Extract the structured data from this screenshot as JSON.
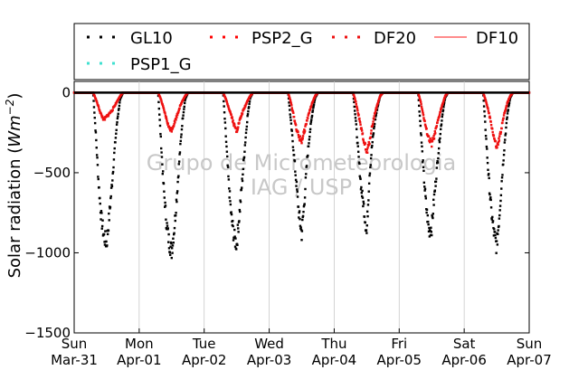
{
  "chart_data": {
    "type": "scatter",
    "ylabel": "Solar radiation (W m^-2)",
    "ylabel_parts": {
      "prefix": "Solar radiation (",
      "unit": "Wm",
      "exp": "−2",
      "suffix": ")"
    },
    "ylim": [
      -1500,
      70
    ],
    "y_ticks": [
      0,
      -500,
      -1000,
      -1500
    ],
    "y_tick_labels": [
      "0",
      "−500",
      "−1000",
      "−1500"
    ],
    "xlim": [
      "2013-03-31",
      "2013-04-07"
    ],
    "x_ticks": [
      {
        "date": "2013-03-31",
        "line1": "Sun",
        "line2": "Mar-31"
      },
      {
        "date": "2013-04-01",
        "line1": "Mon",
        "line2": "Apr-01"
      },
      {
        "date": "2013-04-02",
        "line1": "Tue",
        "line2": "Apr-02"
      },
      {
        "date": "2013-04-03",
        "line1": "Wed",
        "line2": "Apr-03"
      },
      {
        "date": "2013-04-04",
        "line1": "Thu",
        "line2": "Apr-04"
      },
      {
        "date": "2013-04-05",
        "line1": "Fri",
        "line2": "Apr-05"
      },
      {
        "date": "2013-04-06",
        "line1": "Sat",
        "line2": "Apr-06"
      },
      {
        "date": "2013-04-07",
        "line1": "Sun",
        "line2": "Apr-07"
      }
    ],
    "grid": "vertical",
    "legend_placement": "top",
    "watermark": [
      "Grupo de Micrometeorologia",
      "IAG / USP"
    ],
    "series": [
      {
        "name": "GL10",
        "style": "dots",
        "color": "#000000",
        "points": [
          [
            "2013-03-31 07:00",
            0
          ],
          [
            "2013-03-31 08:00",
            -260
          ],
          [
            "2013-03-31 09:00",
            -560
          ],
          [
            "2013-03-31 10:00",
            -780
          ],
          [
            "2013-03-31 11:00",
            -900
          ],
          [
            "2013-03-31 12:00",
            -940
          ],
          [
            "2013-03-31 13:00",
            -760
          ],
          [
            "2013-03-31 14:00",
            -560
          ],
          [
            "2013-03-31 15:00",
            -340
          ],
          [
            "2013-03-31 16:00",
            -160
          ],
          [
            "2013-03-31 17:00",
            -40
          ],
          [
            "2013-03-31 18:00",
            0
          ],
          [
            "2013-04-01 07:00",
            0
          ],
          [
            "2013-04-01 08:00",
            -290
          ],
          [
            "2013-04-01 09:00",
            -580
          ],
          [
            "2013-04-01 10:00",
            -800
          ],
          [
            "2013-04-01 11:00",
            -930
          ],
          [
            "2013-04-01 12:00",
            -990
          ],
          [
            "2013-04-01 13:00",
            -840
          ],
          [
            "2013-04-01 14:00",
            -620
          ],
          [
            "2013-04-01 15:00",
            -380
          ],
          [
            "2013-04-01 16:00",
            -170
          ],
          [
            "2013-04-01 17:00",
            -40
          ],
          [
            "2013-04-01 18:00",
            0
          ],
          [
            "2013-04-02 07:00",
            0
          ],
          [
            "2013-04-02 08:00",
            -270
          ],
          [
            "2013-04-02 09:00",
            -550
          ],
          [
            "2013-04-02 10:00",
            -770
          ],
          [
            "2013-04-02 11:00",
            -900
          ],
          [
            "2013-04-02 12:00",
            -950
          ],
          [
            "2013-04-02 13:00",
            -760
          ],
          [
            "2013-04-02 14:00",
            -560
          ],
          [
            "2013-04-02 15:00",
            -340
          ],
          [
            "2013-04-02 16:00",
            -150
          ],
          [
            "2013-04-02 17:00",
            -30
          ],
          [
            "2013-04-02 18:00",
            0
          ],
          [
            "2013-04-03 07:00",
            0
          ],
          [
            "2013-04-03 08:00",
            -180
          ],
          [
            "2013-04-03 09:00",
            -360
          ],
          [
            "2013-04-03 10:00",
            -560
          ],
          [
            "2013-04-03 11:00",
            -760
          ],
          [
            "2013-04-03 12:00",
            -880
          ],
          [
            "2013-04-03 13:00",
            -680
          ],
          [
            "2013-04-03 14:00",
            -420
          ],
          [
            "2013-04-03 15:00",
            -250
          ],
          [
            "2013-04-03 16:00",
            -120
          ],
          [
            "2013-04-03 17:00",
            -30
          ],
          [
            "2013-04-03 18:00",
            0
          ],
          [
            "2013-04-04 07:00",
            0
          ],
          [
            "2013-04-04 08:00",
            -180
          ],
          [
            "2013-04-04 09:00",
            -400
          ],
          [
            "2013-04-04 10:00",
            -600
          ],
          [
            "2013-04-04 11:00",
            -720
          ],
          [
            "2013-04-04 12:00",
            -880
          ],
          [
            "2013-04-04 13:00",
            -520
          ],
          [
            "2013-04-04 14:00",
            -330
          ],
          [
            "2013-04-04 15:00",
            -180
          ],
          [
            "2013-04-04 16:00",
            -90
          ],
          [
            "2013-04-04 17:00",
            -20
          ],
          [
            "2013-04-04 18:00",
            0
          ],
          [
            "2013-04-05 07:00",
            0
          ],
          [
            "2013-04-05 08:00",
            -240
          ],
          [
            "2013-04-05 09:00",
            -500
          ],
          [
            "2013-04-05 10:00",
            -720
          ],
          [
            "2013-04-05 11:00",
            -860
          ],
          [
            "2013-04-05 12:00",
            -840
          ],
          [
            "2013-04-05 13:00",
            -640
          ],
          [
            "2013-04-05 14:00",
            -460
          ],
          [
            "2013-04-05 15:00",
            -280
          ],
          [
            "2013-04-05 16:00",
            -130
          ],
          [
            "2013-04-05 17:00",
            -30
          ],
          [
            "2013-04-05 18:00",
            0
          ],
          [
            "2013-04-06 07:00",
            0
          ],
          [
            "2013-04-06 08:00",
            -260
          ],
          [
            "2013-04-06 09:00",
            -520
          ],
          [
            "2013-04-06 10:00",
            -740
          ],
          [
            "2013-04-06 11:00",
            -880
          ],
          [
            "2013-04-06 12:00",
            -960
          ],
          [
            "2013-04-06 13:00",
            -760
          ],
          [
            "2013-04-06 14:00",
            -520
          ],
          [
            "2013-04-06 15:00",
            -300
          ],
          [
            "2013-04-06 16:00",
            -130
          ],
          [
            "2013-04-06 17:00",
            -30
          ],
          [
            "2013-04-06 18:00",
            0
          ]
        ]
      },
      {
        "name": "PSP2_G",
        "style": "dots",
        "color": "#ff0000",
        "points": []
      },
      {
        "name": "DF20",
        "style": "dots",
        "color": "#ee1111",
        "points": [
          [
            "2013-03-31 07:00",
            0
          ],
          [
            "2013-03-31 08:00",
            -40
          ],
          [
            "2013-03-31 09:00",
            -90
          ],
          [
            "2013-03-31 10:00",
            -140
          ],
          [
            "2013-03-31 11:00",
            -170
          ],
          [
            "2013-03-31 12:00",
            -150
          ],
          [
            "2013-03-31 13:00",
            -130
          ],
          [
            "2013-03-31 14:00",
            -110
          ],
          [
            "2013-03-31 15:00",
            -80
          ],
          [
            "2013-03-31 16:00",
            -50
          ],
          [
            "2013-03-31 17:00",
            -20
          ],
          [
            "2013-03-31 18:00",
            0
          ],
          [
            "2013-04-01 07:00",
            0
          ],
          [
            "2013-04-01 08:00",
            -40
          ],
          [
            "2013-04-01 09:00",
            -100
          ],
          [
            "2013-04-01 10:00",
            -160
          ],
          [
            "2013-04-01 11:00",
            -220
          ],
          [
            "2013-04-01 12:00",
            -230
          ],
          [
            "2013-04-01 13:00",
            -190
          ],
          [
            "2013-04-01 14:00",
            -140
          ],
          [
            "2013-04-01 15:00",
            -90
          ],
          [
            "2013-04-01 16:00",
            -50
          ],
          [
            "2013-04-01 17:00",
            -20
          ],
          [
            "2013-04-01 18:00",
            0
          ],
          [
            "2013-04-02 07:00",
            0
          ],
          [
            "2013-04-02 08:00",
            -40
          ],
          [
            "2013-04-02 09:00",
            -90
          ],
          [
            "2013-04-02 10:00",
            -140
          ],
          [
            "2013-04-02 11:00",
            -200
          ],
          [
            "2013-04-02 12:00",
            -240
          ],
          [
            "2013-04-02 13:00",
            -180
          ],
          [
            "2013-04-02 14:00",
            -130
          ],
          [
            "2013-04-02 15:00",
            -90
          ],
          [
            "2013-04-02 16:00",
            -50
          ],
          [
            "2013-04-02 17:00",
            -20
          ],
          [
            "2013-04-02 18:00",
            0
          ],
          [
            "2013-04-03 07:00",
            0
          ],
          [
            "2013-04-03 08:00",
            -60
          ],
          [
            "2013-04-03 09:00",
            -140
          ],
          [
            "2013-04-03 10:00",
            -220
          ],
          [
            "2013-04-03 11:00",
            -280
          ],
          [
            "2013-04-03 12:00",
            -300
          ],
          [
            "2013-04-03 13:00",
            -240
          ],
          [
            "2013-04-03 14:00",
            -170
          ],
          [
            "2013-04-03 15:00",
            -110
          ],
          [
            "2013-04-03 16:00",
            -60
          ],
          [
            "2013-04-03 17:00",
            -20
          ],
          [
            "2013-04-03 18:00",
            0
          ],
          [
            "2013-04-04 07:00",
            0
          ],
          [
            "2013-04-04 08:00",
            -60
          ],
          [
            "2013-04-04 09:00",
            -140
          ],
          [
            "2013-04-04 10:00",
            -230
          ],
          [
            "2013-04-04 11:00",
            -300
          ],
          [
            "2013-04-04 12:00",
            -380
          ],
          [
            "2013-04-04 13:00",
            -310
          ],
          [
            "2013-04-04 14:00",
            -210
          ],
          [
            "2013-04-04 15:00",
            -130
          ],
          [
            "2013-04-04 16:00",
            -70
          ],
          [
            "2013-04-04 17:00",
            -20
          ],
          [
            "2013-04-04 18:00",
            0
          ],
          [
            "2013-04-05 07:00",
            0
          ],
          [
            "2013-04-05 08:00",
            -60
          ],
          [
            "2013-04-05 09:00",
            -150
          ],
          [
            "2013-04-05 10:00",
            -230
          ],
          [
            "2013-04-05 11:00",
            -290
          ],
          [
            "2013-04-05 12:00",
            -320
          ],
          [
            "2013-04-05 13:00",
            -270
          ],
          [
            "2013-04-05 14:00",
            -200
          ],
          [
            "2013-04-05 15:00",
            -130
          ],
          [
            "2013-04-05 16:00",
            -70
          ],
          [
            "2013-04-05 17:00",
            -20
          ],
          [
            "2013-04-05 18:00",
            0
          ],
          [
            "2013-04-06 07:00",
            0
          ],
          [
            "2013-04-06 08:00",
            -50
          ],
          [
            "2013-04-06 09:00",
            -120
          ],
          [
            "2013-04-06 10:00",
            -200
          ],
          [
            "2013-04-06 11:00",
            -280
          ],
          [
            "2013-04-06 12:00",
            -350
          ],
          [
            "2013-04-06 13:00",
            -290
          ],
          [
            "2013-04-06 14:00",
            -200
          ],
          [
            "2013-04-06 15:00",
            -120
          ],
          [
            "2013-04-06 16:00",
            -60
          ],
          [
            "2013-04-06 17:00",
            -20
          ],
          [
            "2013-04-06 18:00",
            0
          ]
        ]
      },
      {
        "name": "DF10",
        "style": "line",
        "color": "#ff6666",
        "points": []
      },
      {
        "name": "PSP1_G",
        "style": "dots",
        "color": "#40e0d0",
        "points": []
      }
    ]
  }
}
